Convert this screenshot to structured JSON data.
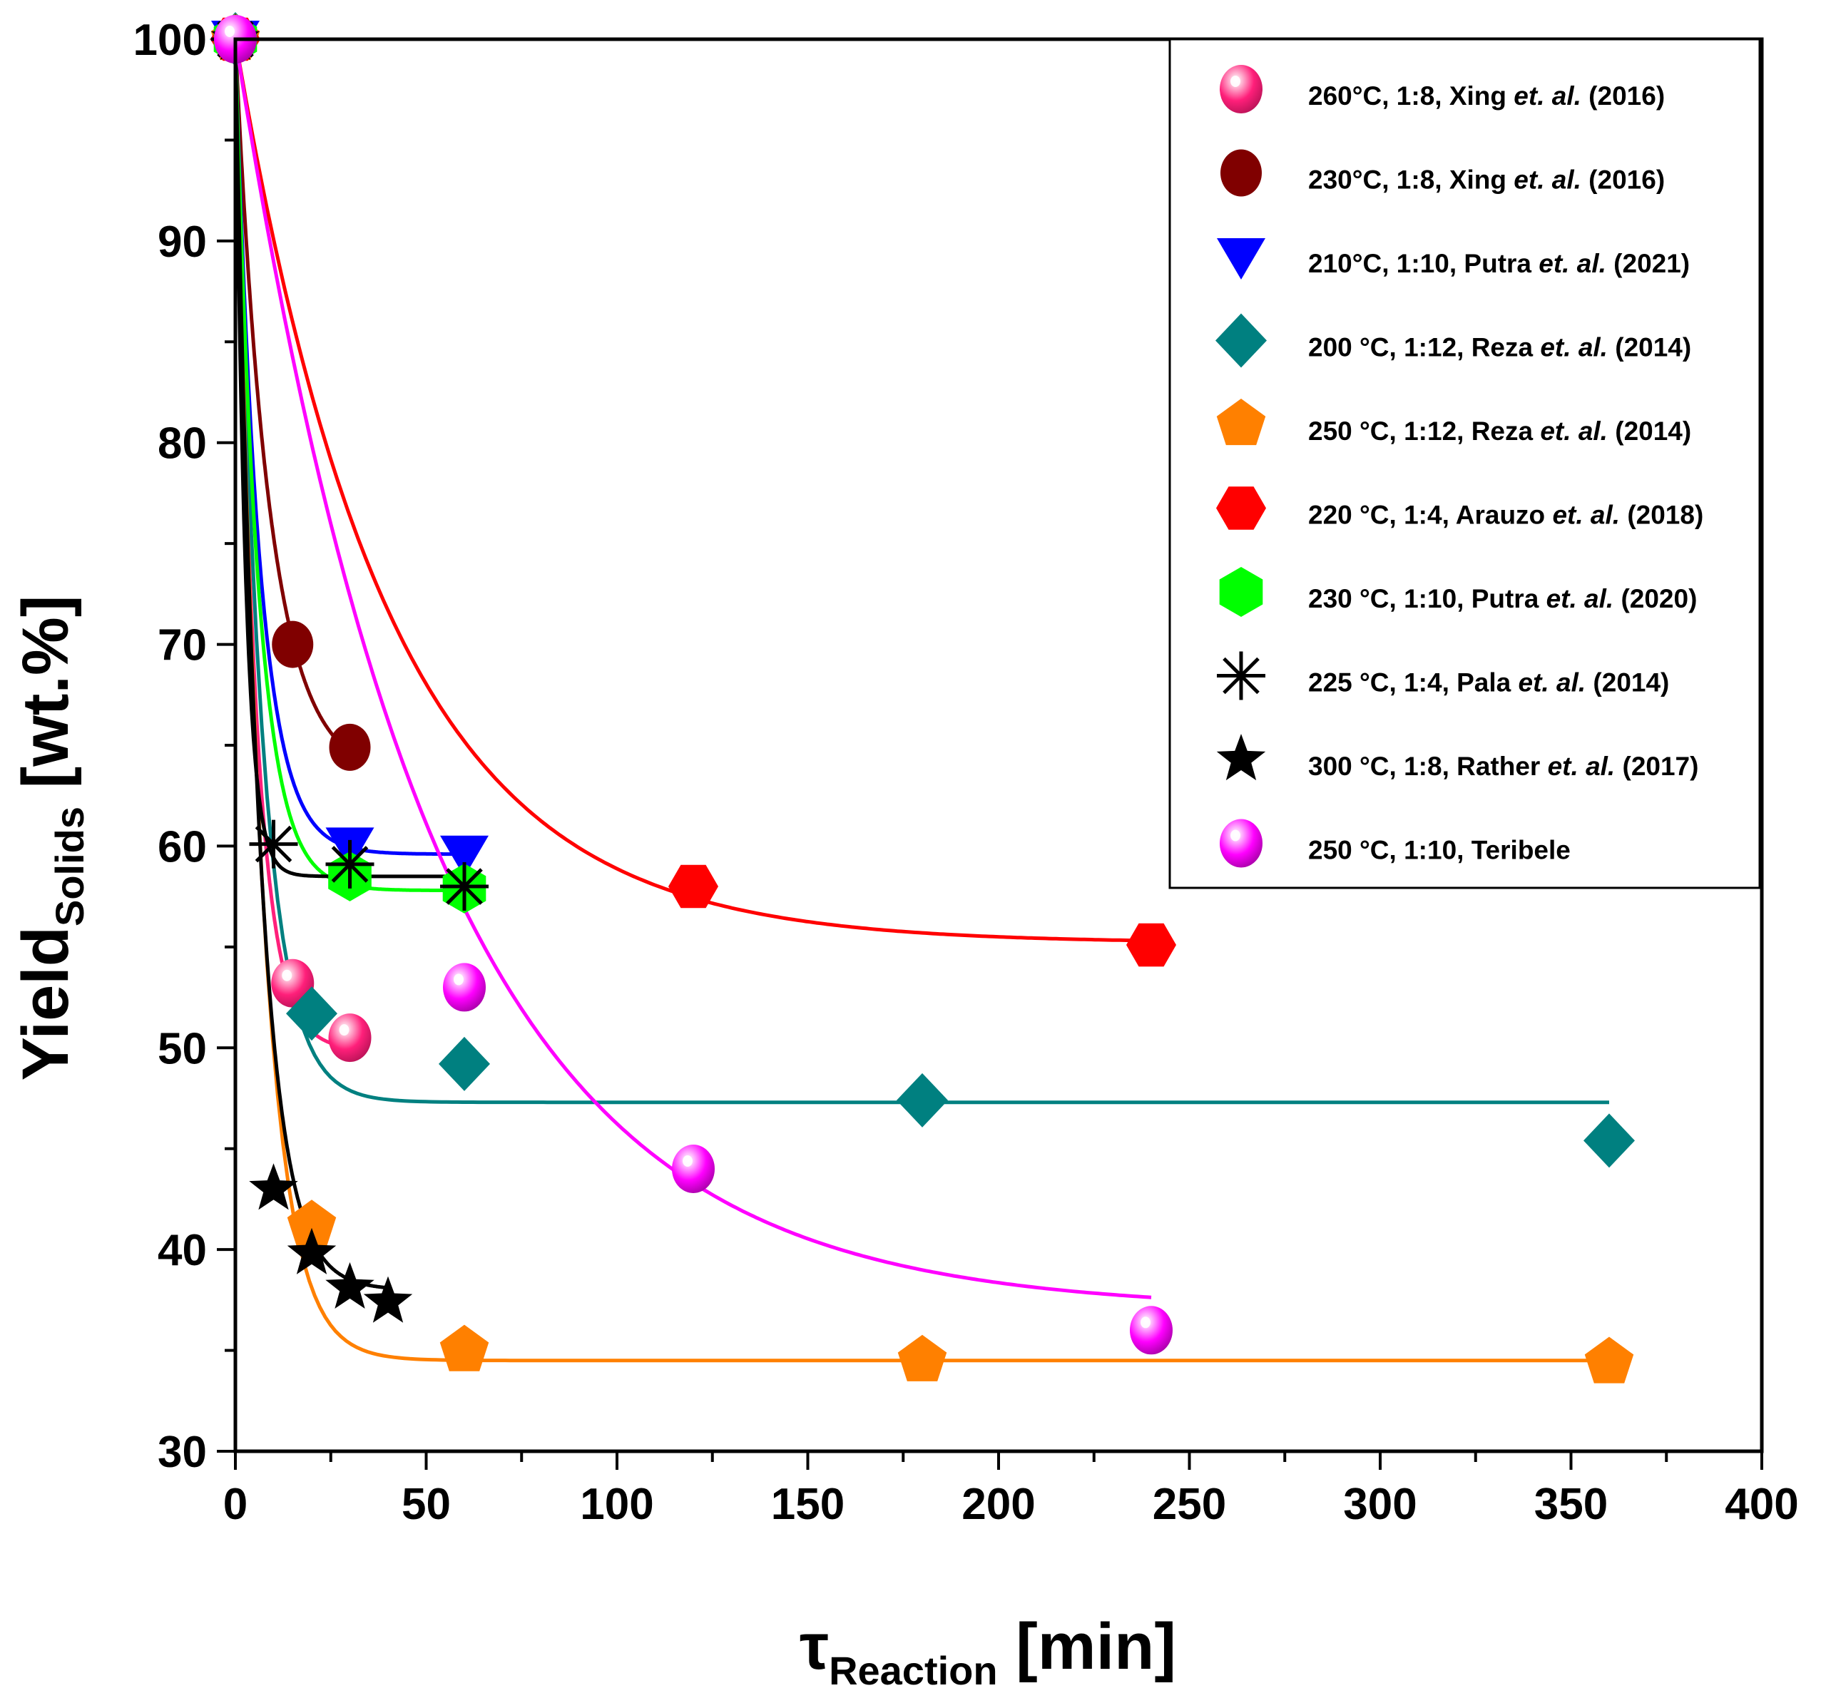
{
  "chart_data": {
    "type": "scatter",
    "xlim": [
      0,
      400
    ],
    "ylim": [
      30,
      100
    ],
    "x_ticks": [
      0,
      50,
      100,
      150,
      200,
      250,
      300,
      350,
      400
    ],
    "y_ticks": [
      30,
      40,
      50,
      60,
      70,
      80,
      90,
      100
    ],
    "xlabel": {
      "main": "τ",
      "sub": "Reaction",
      "unit": " [min]"
    },
    "ylabel": {
      "main": "Yield",
      "sub": "Solids",
      "unit": " [wt.%]"
    },
    "legend_position": "top-right",
    "series": [
      {
        "name": "260°C, 1:8, Xing et. al. (2016)",
        "label_pre": "260°C, 1:8, Xing ",
        "label_ital": "et. al.",
        "label_post": " (2016)",
        "marker": "sphere",
        "color": "#ff1f7a",
        "x": [
          0,
          15,
          30
        ],
        "y": [
          100,
          53.2,
          50.5
        ],
        "fit": {
          "a": 49.9,
          "b": 50.1,
          "k": 0.2
        }
      },
      {
        "name": "230°C, 1:8, Xing et. al. (2016)",
        "label_pre": "230°C, 1:8, Xing ",
        "label_ital": "et. al.",
        "label_post": " (2016)",
        "marker": "circle",
        "color": "#800000",
        "x": [
          0,
          15,
          30
        ],
        "y": [
          100,
          70,
          64.9
        ],
        "fit": {
          "a": 63.4,
          "b": 36.6,
          "k": 0.112,
          "xmax": 30
        }
      },
      {
        "name": "210°C, 1:10, Putra et. al. (2021)",
        "label_pre": "210°C, 1:10, Putra ",
        "label_ital": "et. al.",
        "label_post": " (2021)",
        "marker": "triangle-down",
        "color": "#0000ff",
        "x": [
          0,
          30,
          60
        ],
        "y": [
          100,
          60,
          59.6
        ],
        "fit": {
          "a": 59.6,
          "b": 40.4,
          "k": 0.16,
          "xmax": 60
        }
      },
      {
        "name": "200 °C, 1:12, Reza et. al. (2014)",
        "label_pre": "200 °C, 1:12, Reza ",
        "label_ital": "et. al.",
        "label_post": " (2014)",
        "marker": "diamond",
        "color": "#008080",
        "x": [
          0,
          20,
          60,
          180,
          360
        ],
        "y": [
          100,
          51.7,
          49.2,
          47.4,
          45.4
        ],
        "fit": {
          "a": 47.3,
          "b": 52.7,
          "k": 0.15,
          "xmax": 360
        }
      },
      {
        "name": "250 °C, 1:12, Reza et. al. (2014)",
        "label_pre": "250 °C, 1:12, Reza ",
        "label_ital": "et. al.",
        "label_post": " (2014)",
        "marker": "pentagon",
        "color": "#ff8000",
        "x": [
          0,
          20,
          60,
          180,
          360
        ],
        "y": [
          100,
          41.2,
          35,
          34.5,
          34.4
        ],
        "fit": {
          "a": 34.5,
          "b": 65.5,
          "k": 0.145,
          "xmax": 360
        }
      },
      {
        "name": "220 °C, 1:4, Arauzo et. al. (2018)",
        "label_pre": "220 °C, 1:4, Arauzo ",
        "label_ital": "et. al.",
        "label_post": " (2018)",
        "marker": "hexagon",
        "color": "#ff0000",
        "x": [
          0,
          120,
          240
        ],
        "y": [
          100,
          58,
          55.1
        ],
        "fit": {
          "a": 55.2,
          "b": 44.8,
          "k": 0.025,
          "xmax": 240
        }
      },
      {
        "name": "230 °C, 1:10, Putra et. al. (2020)",
        "label_pre": "230 °C, 1:10, Putra ",
        "label_ital": "et. al.",
        "label_post": " (2020)",
        "marker": "hexagon-v",
        "color": "#00ff00",
        "x": [
          0,
          30,
          60
        ],
        "y": [
          100,
          58.5,
          57.9
        ],
        "fit": {
          "a": 57.8,
          "b": 42.2,
          "k": 0.17,
          "xmax": 60
        }
      },
      {
        "name": "225 °C, 1:4, Pala et. al. (2014)",
        "label_pre": "225 °C, 1:4, Pala ",
        "label_ital": "et. al.",
        "label_post": " (2014)",
        "marker": "asterisk",
        "color": "#000000",
        "x": [
          0,
          10,
          30,
          60
        ],
        "y": [
          100,
          60.1,
          59.1,
          58
        ],
        "fit": {
          "a": 58.5,
          "b": 41.5,
          "k": 0.38,
          "xmax": 65
        }
      },
      {
        "name": "300 °C, 1:8, Rather et. al. (2017)",
        "label_pre": "300 °C, 1:8, Rather ",
        "label_ital": "et. al.",
        "label_post": " (2017)",
        "marker": "star",
        "color": "#000000",
        "x": [
          0,
          10,
          20,
          30,
          40
        ],
        "y": [
          100,
          43,
          39.8,
          38.1,
          37.4
        ],
        "fit": {
          "a": 38,
          "b": 62,
          "k": 0.16,
          "xmax": 40
        }
      },
      {
        "name": "250 °C, 1:10, Teribele",
        "label_pre": "250 °C, 1:10, Teribele",
        "label_ital": "",
        "label_post": "",
        "marker": "sphere",
        "color": "#ff00ff",
        "x": [
          0,
          60,
          120,
          240
        ],
        "y": [
          100,
          53,
          44,
          36
        ],
        "fit": {
          "a": 37,
          "b": 63,
          "k": 0.0192,
          "xmax": 240
        }
      }
    ]
  }
}
